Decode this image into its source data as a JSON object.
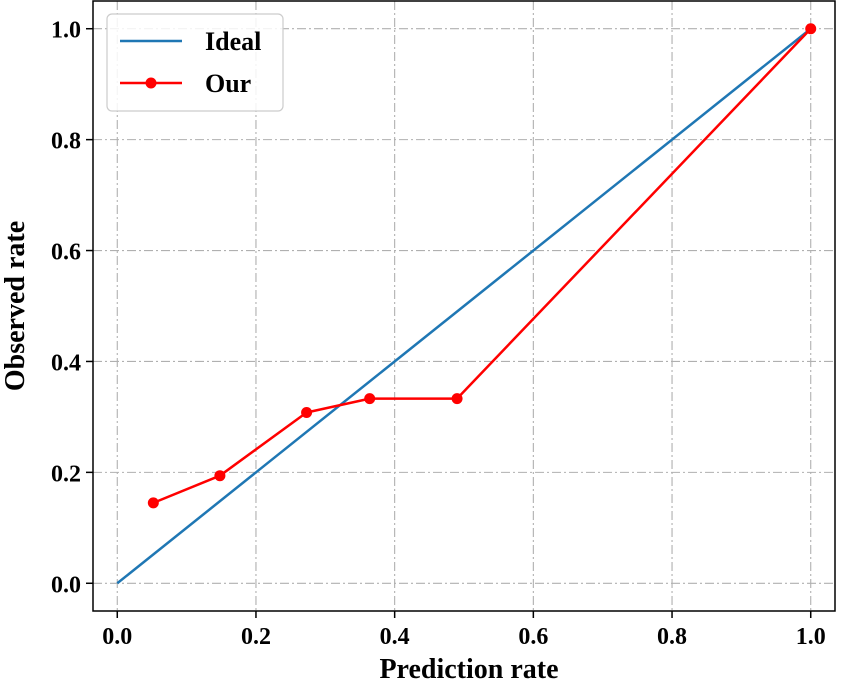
{
  "chart_data": {
    "type": "line",
    "title": "",
    "xlabel": "Prediction rate",
    "ylabel": "Observed rate",
    "xlim": [
      -0.035,
      1.035
    ],
    "ylim": [
      -0.05,
      1.05
    ],
    "xticks": [
      0.0,
      0.2,
      0.4,
      0.6,
      0.8,
      1.0
    ],
    "yticks": [
      0.0,
      0.2,
      0.4,
      0.6,
      0.8,
      1.0
    ],
    "tick_labels_x": [
      "0.0",
      "0.2",
      "0.4",
      "0.6",
      "0.8",
      "1.0"
    ],
    "tick_labels_y": [
      "0.0",
      "0.2",
      "0.4",
      "0.6",
      "0.8",
      "1.0"
    ],
    "grid": true,
    "legend_position": "top-left",
    "series": [
      {
        "name": "Ideal",
        "color": "#1f77b4",
        "marker": "none",
        "x": [
          0.0,
          1.0
        ],
        "y": [
          0.0,
          1.0
        ]
      },
      {
        "name": "Our",
        "color": "#ff0000",
        "marker": "circle",
        "x": [
          0.052,
          0.148,
          0.273,
          0.364,
          0.49,
          1.0
        ],
        "y": [
          0.145,
          0.194,
          0.308,
          0.333,
          0.333,
          1.0
        ]
      }
    ]
  }
}
